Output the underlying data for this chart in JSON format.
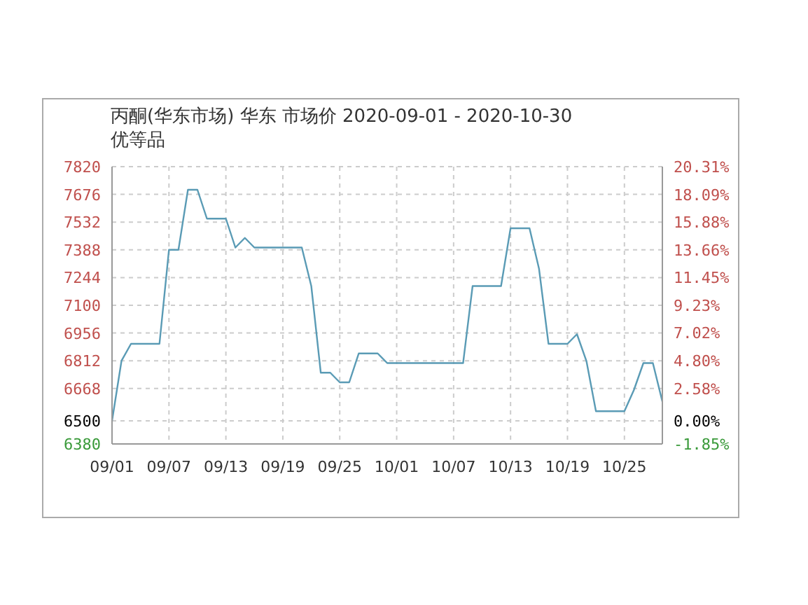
{
  "chart_data": {
    "type": "line",
    "title": "丙酮(华东市场) 华东 市场价 2020-09-01 - 2020-10-30",
    "subtitle": "优等品",
    "x": [
      "2020-09-01",
      "2020-09-02",
      "2020-09-03",
      "2020-09-06",
      "2020-09-07",
      "2020-09-08",
      "2020-09-09",
      "2020-09-10",
      "2020-09-11",
      "2020-09-13",
      "2020-09-14",
      "2020-09-15",
      "2020-09-16",
      "2020-09-21",
      "2020-09-22",
      "2020-09-23",
      "2020-09-24",
      "2020-09-25",
      "2020-09-26",
      "2020-09-27",
      "2020-09-29",
      "2020-09-30",
      "2020-10-08",
      "2020-10-09",
      "2020-10-12",
      "2020-10-13",
      "2020-10-15",
      "2020-10-16",
      "2020-10-17",
      "2020-10-19",
      "2020-10-20",
      "2020-10-21",
      "2020-10-22",
      "2020-10-25",
      "2020-10-26",
      "2020-10-27",
      "2020-10-28",
      "2020-10-29"
    ],
    "series": [
      {
        "color": "#5a9bb5",
        "values": [
          6500,
          6812,
          6900,
          6900,
          7388,
          7388,
          7700,
          7700,
          7550,
          7550,
          7400,
          7450,
          7400,
          7400,
          7200,
          6750,
          6750,
          6700,
          6700,
          6850,
          6850,
          6800,
          6800,
          7200,
          7200,
          7500,
          7500,
          7290,
          6900,
          6900,
          6950,
          6810,
          6550,
          6550,
          6660,
          6800,
          6800,
          6600
        ]
      }
    ],
    "xlim": [
      "2020-09-01",
      "2020-10-29"
    ],
    "xticks": [
      {
        "value": "2020-09-01",
        "label": "09/01"
      },
      {
        "value": "2020-09-07",
        "label": "09/07"
      },
      {
        "value": "2020-09-13",
        "label": "09/13"
      },
      {
        "value": "2020-09-19",
        "label": "09/19"
      },
      {
        "value": "2020-09-25",
        "label": "09/25"
      },
      {
        "value": "2020-10-01",
        "label": "10/01"
      },
      {
        "value": "2020-10-07",
        "label": "10/07"
      },
      {
        "value": "2020-10-13",
        "label": "10/13"
      },
      {
        "value": "2020-10-19",
        "label": "10/19"
      },
      {
        "value": "2020-10-25",
        "label": "10/25"
      }
    ],
    "ylim": [
      6380,
      7820
    ],
    "yticks": [
      6380,
      6500,
      6668,
      6812,
      6956,
      7100,
      7244,
      7388,
      7532,
      7676,
      7820
    ],
    "y2lim": [
      -1.85,
      20.31
    ],
    "y2ticks": [
      {
        "value": -1.85,
        "label": "-1.85%"
      },
      {
        "value": 0,
        "label": "0.00%"
      },
      {
        "value": 2.58,
        "label": "2.58%"
      },
      {
        "value": 4.8,
        "label": "4.80%"
      },
      {
        "value": 7.02,
        "label": "7.02%"
      },
      {
        "value": 9.23,
        "label": "9.23%"
      },
      {
        "value": 11.45,
        "label": "11.45%"
      },
      {
        "value": 13.66,
        "label": "13.66%"
      },
      {
        "value": 15.88,
        "label": "15.88%"
      },
      {
        "value": 18.09,
        "label": "18.09%"
      },
      {
        "value": 20.31,
        "label": "20.31%"
      }
    ],
    "grid": true,
    "legend": false,
    "marker": "none",
    "line_style": "solid"
  }
}
